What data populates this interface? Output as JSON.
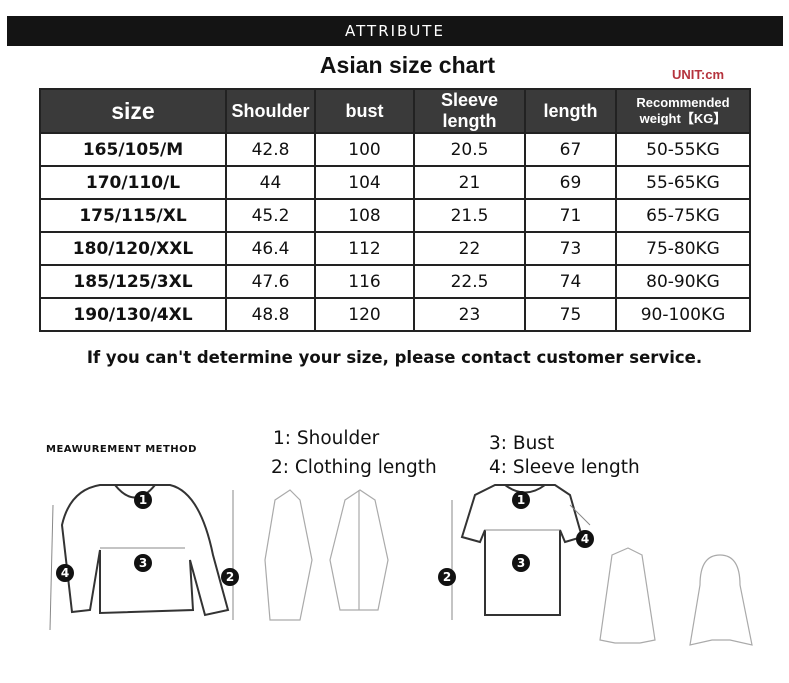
{
  "banner": "ATTRIBUTE",
  "title": "Asian size chart",
  "unit": "UNIT:cm",
  "table": {
    "headers": [
      "size",
      "Shoulder",
      "bust",
      "Sleeve length",
      "length",
      "Recommended weight【KG】"
    ],
    "rows": [
      [
        "165/105/M",
        "42.8",
        "100",
        "20.5",
        "67",
        "50-55KG"
      ],
      [
        "170/110/L",
        "44",
        "104",
        "21",
        "69",
        "55-65KG"
      ],
      [
        "175/115/XL",
        "45.2",
        "108",
        "21.5",
        "71",
        "65-75KG"
      ],
      [
        "180/120/XXL",
        "46.4",
        "112",
        "22",
        "73",
        "75-80KG"
      ],
      [
        "185/125/3XL",
        "47.6",
        "116",
        "22.5",
        "74",
        "80-90KG"
      ],
      [
        "190/130/4XL",
        "48.8",
        "120",
        "23",
        "75",
        "90-100KG"
      ]
    ]
  },
  "note": "If you can't determine your size, please contact customer service.",
  "measurement": {
    "title": "MEAWUREMENT METHOD",
    "legend": [
      "1:  Shoulder",
      "2:  Clothing length",
      "3:  Bust",
      "4:  Sleeve length"
    ],
    "markers": [
      "1",
      "2",
      "3",
      "4"
    ]
  }
}
